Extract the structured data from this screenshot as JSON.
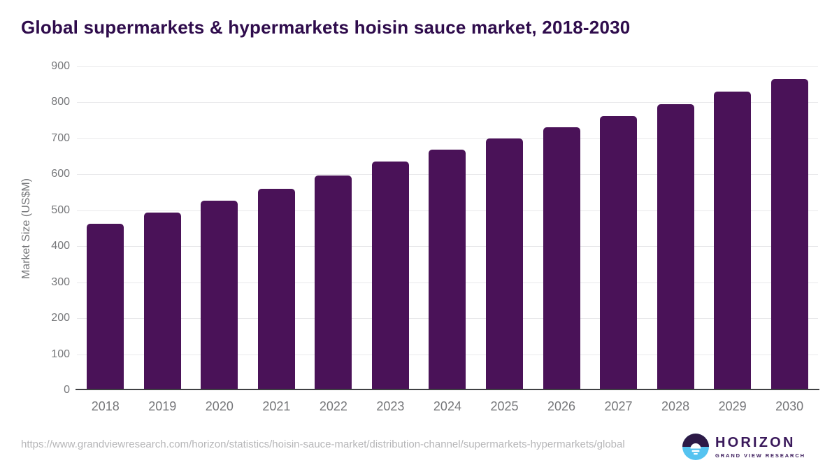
{
  "chart_data": {
    "type": "bar",
    "title": "Global supermarkets & hypermarkets hoisin sauce market, 2018-2030",
    "xlabel": "",
    "ylabel": "Market Size (US$M)",
    "categories": [
      "2018",
      "2019",
      "2020",
      "2021",
      "2022",
      "2023",
      "2024",
      "2025",
      "2026",
      "2027",
      "2028",
      "2029",
      "2030"
    ],
    "values": [
      463,
      493,
      526,
      560,
      597,
      636,
      668,
      699,
      730,
      762,
      795,
      830,
      866
    ],
    "ylim": [
      0,
      900
    ],
    "yticks": [
      0,
      100,
      200,
      300,
      400,
      500,
      600,
      700,
      800,
      900
    ],
    "grid": true,
    "legend": "none"
  },
  "footer": {
    "source_url": "https://www.grandviewresearch.com/horizon/statistics/hoisin-sauce-market/distribution-channel/supermarkets-hypermarkets/global",
    "logo": {
      "name": "HORIZON",
      "subtext": "GRAND VIEW RESEARCH",
      "icon": "horizon-sun-circle-icon"
    }
  },
  "colors": {
    "bar": "#4a1258",
    "title": "#2f0c4c",
    "tick": "#76777a",
    "grid": "#e9e9eb",
    "axis": "#3f4043",
    "url": "#b6b6b8",
    "logo": "#3a195b",
    "logo_blue": "#55c3f0",
    "logo_dark": "#2d1a47"
  }
}
